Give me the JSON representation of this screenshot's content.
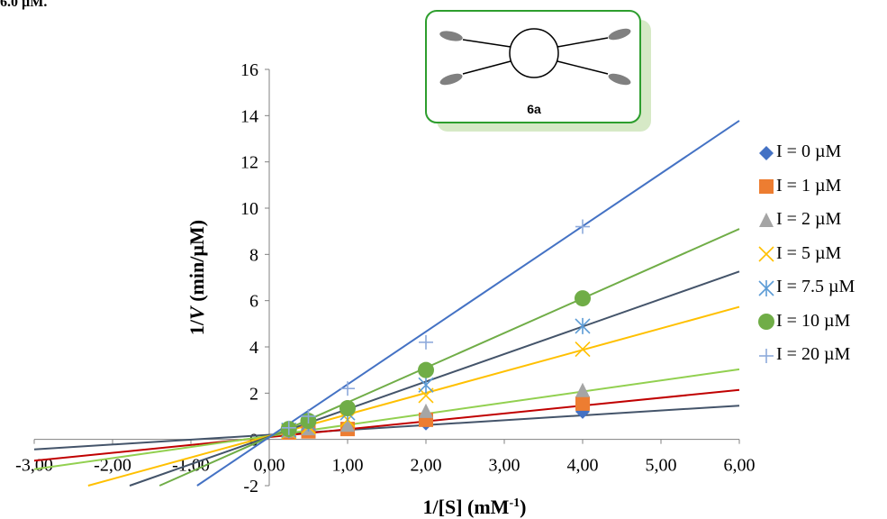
{
  "top_note": "6.0 µM.",
  "inset": {
    "label": "6a"
  },
  "chart_data": {
    "type": "scatter",
    "title": "",
    "xlabel": "1/[S] (mM",
    "xlabel_sup": "-1",
    "xlabel_end": ")",
    "ylabel_prefix": "1/",
    "ylabel_var": "V",
    "ylabel_suffix": " (min/µM)",
    "xlim": [
      -3,
      6
    ],
    "ylim": [
      -2,
      16
    ],
    "x_ticks": [
      "-3,00",
      "-2,00",
      "-1,00",
      "0,00",
      "1,00",
      "2,00",
      "3,00",
      "4,00",
      "5,00",
      "6,00"
    ],
    "y_ticks": [
      "-2",
      "0",
      "2",
      "4",
      "6",
      "8",
      "10",
      "12",
      "14",
      "16"
    ],
    "legend_position": "right",
    "series": [
      {
        "name": "I = 0 µM",
        "marker": "diamond",
        "color": "#4472c4",
        "line_color": "#44546a",
        "x": [
          0.25,
          0.5,
          1,
          2,
          4
        ],
        "y": [
          0.35,
          0.4,
          0.45,
          0.7,
          1.2
        ],
        "slope": 0.21,
        "intercept": 0.2
      },
      {
        "name": "I = 1 µM",
        "marker": "square",
        "color": "#ed7d31",
        "line_color": "#c00000",
        "x": [
          0.25,
          0.5,
          1,
          2,
          4
        ],
        "y": [
          0.3,
          0.35,
          0.45,
          0.85,
          1.55
        ],
        "slope": 0.34,
        "intercept": 0.1
      },
      {
        "name": "I = 2 µM",
        "marker": "triangle",
        "color": "#a5a5a5",
        "line_color": "#92d050",
        "x": [
          0.25,
          0.5,
          1,
          2,
          4
        ],
        "y": [
          0.35,
          0.45,
          0.6,
          1.2,
          2.1
        ],
        "slope": 0.48,
        "intercept": 0.15
      },
      {
        "name": "I = 5 µM",
        "marker": "x",
        "color": "#ffc000",
        "line_color": "#ffc000",
        "x": [
          0.25,
          0.5,
          1,
          2,
          4
        ],
        "y": [
          0.35,
          0.55,
          0.85,
          1.9,
          3.9
        ],
        "slope": 0.93,
        "intercept": 0.15
      },
      {
        "name": "I = 7.5 µM",
        "marker": "star",
        "color": "#5b9bd5",
        "line_color": "#44546a",
        "x": [
          0.25,
          0.5,
          1,
          2,
          4
        ],
        "y": [
          0.4,
          0.7,
          1.15,
          2.35,
          4.9
        ],
        "slope": 1.19,
        "intercept": 0.12
      },
      {
        "name": "I = 10 µM",
        "marker": "circle",
        "color": "#70ad47",
        "line_color": "#70ad47",
        "x": [
          0.25,
          0.5,
          1,
          2,
          4
        ],
        "y": [
          0.45,
          0.8,
          1.35,
          3.0,
          6.1
        ],
        "slope": 1.5,
        "intercept": 0.1
      },
      {
        "name": "I = 20 µM",
        "marker": "plus",
        "color": "#8eaadb",
        "line_color": "#4472c4",
        "x": [
          0.25,
          0.5,
          1,
          2,
          4
        ],
        "y": [
          0.5,
          1.0,
          2.2,
          4.2,
          9.2
        ],
        "slope": 2.28,
        "intercept": 0.1
      }
    ]
  }
}
